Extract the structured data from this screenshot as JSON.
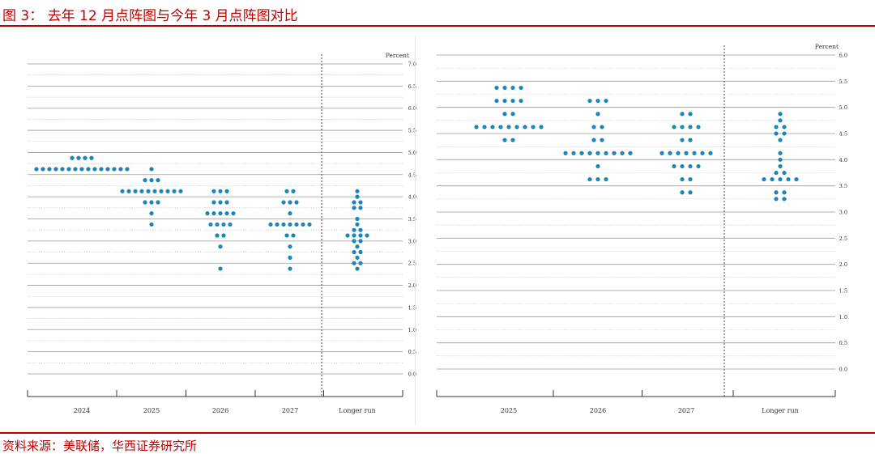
{
  "figure": {
    "title": "图 3： 去年 12 月点阵图与今年 3 月点阵图对比",
    "source": "资料来源：美联储，华西证券研究所"
  },
  "colors": {
    "accent": "#c00000",
    "dot": "#1a87b8",
    "grid": "#9a9a9a",
    "text": "#333333"
  },
  "chart_data": [
    {
      "type": "scatter",
      "title": "",
      "ylabel": "Percent",
      "ylim": [
        0,
        7.0
      ],
      "ytick_step": 0.25,
      "ytick_labels": [
        "0.0",
        "0.5",
        "1.0",
        "1.5",
        "2.0",
        "2.5",
        "3.0",
        "3.5",
        "4.0",
        "4.5",
        "5.0",
        "5.5",
        "6.0",
        "6.5",
        "7.0"
      ],
      "categories": [
        "2024",
        "2025",
        "2026",
        "2027",
        "Longer run"
      ],
      "grid": true,
      "dashed_separator_before": "Longer run",
      "series": [
        {
          "category": "2024",
          "points": [
            {
              "y": 4.875,
              "n": 4
            },
            {
              "y": 4.625,
              "n": 15
            }
          ]
        },
        {
          "category": "2025",
          "points": [
            {
              "y": 4.625,
              "n": 1
            },
            {
              "y": 4.375,
              "n": 3
            },
            {
              "y": 4.125,
              "n": 10
            },
            {
              "y": 3.875,
              "n": 3
            },
            {
              "y": 3.625,
              "n": 1
            },
            {
              "y": 3.375,
              "n": 1
            }
          ]
        },
        {
          "category": "2026",
          "points": [
            {
              "y": 4.125,
              "n": 3
            },
            {
              "y": 3.875,
              "n": 3
            },
            {
              "y": 3.625,
              "n": 5
            },
            {
              "y": 3.375,
              "n": 4
            },
            {
              "y": 3.125,
              "n": 2
            },
            {
              "y": 2.875,
              "n": 1
            },
            {
              "y": 2.375,
              "n": 1
            }
          ]
        },
        {
          "category": "2027",
          "points": [
            {
              "y": 4.125,
              "n": 2
            },
            {
              "y": 3.875,
              "n": 3
            },
            {
              "y": 3.625,
              "n": 1
            },
            {
              "y": 3.375,
              "n": 7
            },
            {
              "y": 3.125,
              "n": 2
            },
            {
              "y": 2.875,
              "n": 1
            },
            {
              "y": 2.625,
              "n": 1
            },
            {
              "y": 2.375,
              "n": 1
            }
          ]
        },
        {
          "category": "Longer run",
          "points": [
            {
              "y": 4.125,
              "n": 1
            },
            {
              "y": 4.0,
              "n": 1
            },
            {
              "y": 3.875,
              "n": 2
            },
            {
              "y": 3.75,
              "n": 2
            },
            {
              "y": 3.5,
              "n": 1
            },
            {
              "y": 3.375,
              "n": 1
            },
            {
              "y": 3.25,
              "n": 2
            },
            {
              "y": 3.125,
              "n": 4
            },
            {
              "y": 3.0,
              "n": 2
            },
            {
              "y": 2.875,
              "n": 1
            },
            {
              "y": 2.75,
              "n": 2
            },
            {
              "y": 2.625,
              "n": 1
            },
            {
              "y": 2.5,
              "n": 2
            },
            {
              "y": 2.375,
              "n": 1
            }
          ]
        }
      ]
    },
    {
      "type": "scatter",
      "title": "",
      "ylabel": "Percent",
      "ylim": [
        0,
        6.0
      ],
      "ytick_step": 0.25,
      "ytick_labels": [
        "0.0",
        "0.5",
        "1.0",
        "1.5",
        "2.0",
        "2.5",
        "3.0",
        "3.5",
        "4.0",
        "4.5",
        "5.0",
        "5.5",
        "6.0"
      ],
      "categories": [
        "2025",
        "2026",
        "2027",
        "Longer run"
      ],
      "grid": true,
      "dashed_separator_before": "Longer run",
      "series": [
        {
          "category": "2025",
          "points": [
            {
              "y": 5.375,
              "n": 4
            },
            {
              "y": 5.125,
              "n": 4
            },
            {
              "y": 4.875,
              "n": 2
            },
            {
              "y": 4.625,
              "n": 9
            },
            {
              "y": 4.375,
              "n": 2
            }
          ]
        },
        {
          "category": "2026",
          "points": [
            {
              "y": 5.125,
              "n": 3
            },
            {
              "y": 4.875,
              "n": 1
            },
            {
              "y": 4.625,
              "n": 2
            },
            {
              "y": 4.375,
              "n": 2
            },
            {
              "y": 4.125,
              "n": 9
            },
            {
              "y": 3.875,
              "n": 1
            },
            {
              "y": 3.625,
              "n": 3
            }
          ]
        },
        {
          "category": "2027",
          "points": [
            {
              "y": 4.875,
              "n": 2
            },
            {
              "y": 4.625,
              "n": 4
            },
            {
              "y": 4.375,
              "n": 2
            },
            {
              "y": 4.125,
              "n": 7
            },
            {
              "y": 3.875,
              "n": 4
            },
            {
              "y": 3.625,
              "n": 2
            },
            {
              "y": 3.375,
              "n": 2
            }
          ]
        },
        {
          "category": "Longer run",
          "points": [
            {
              "y": 4.875,
              "n": 1
            },
            {
              "y": 4.75,
              "n": 1
            },
            {
              "y": 4.625,
              "n": 2
            },
            {
              "y": 4.5,
              "n": 2
            },
            {
              "y": 4.375,
              "n": 1
            },
            {
              "y": 4.125,
              "n": 1
            },
            {
              "y": 4.0,
              "n": 1
            },
            {
              "y": 3.875,
              "n": 1
            },
            {
              "y": 3.75,
              "n": 2
            },
            {
              "y": 3.625,
              "n": 5
            },
            {
              "y": 3.375,
              "n": 2
            },
            {
              "y": 3.25,
              "n": 2
            }
          ]
        }
      ]
    }
  ]
}
